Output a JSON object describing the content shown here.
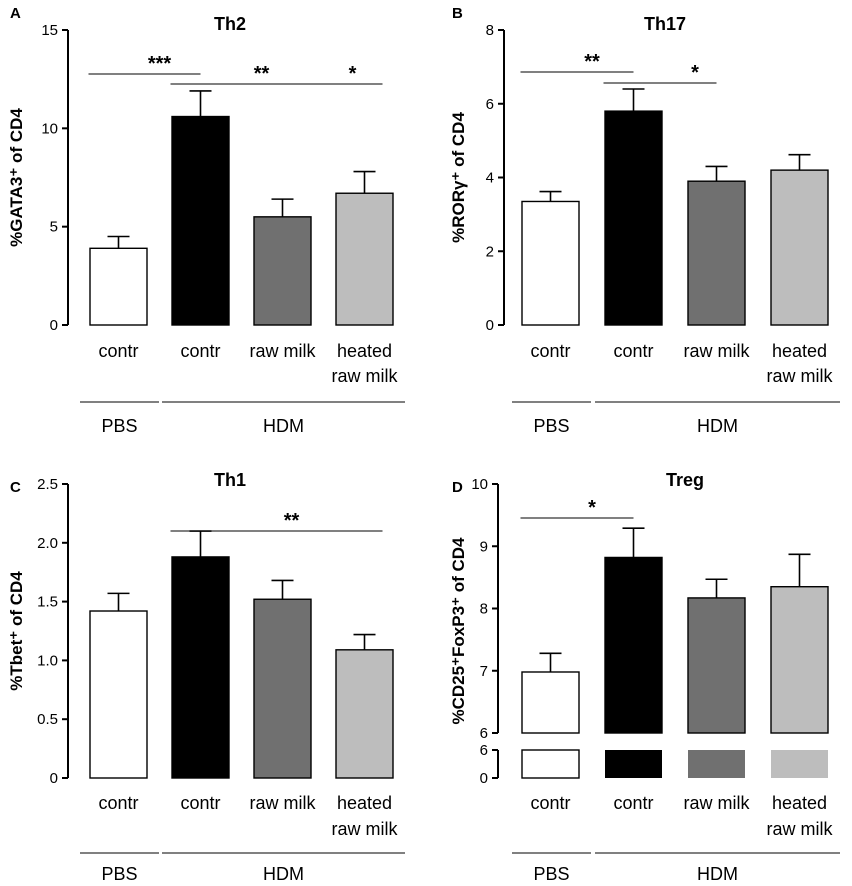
{
  "chart_data": [
    {
      "type": "bar",
      "panel": "A",
      "title": "Th2",
      "ylabel": "%GATA3⁺ of CD4",
      "ylim": [
        0,
        15
      ],
      "yticks": [
        "0",
        "5",
        "10",
        "15"
      ],
      "categories": [
        "contr",
        "contr",
        "raw milk",
        "heated raw milk"
      ],
      "category_lines": [
        [
          "contr"
        ],
        [
          "contr"
        ],
        [
          "raw milk"
        ],
        [
          "heated",
          "raw milk"
        ]
      ],
      "values": [
        3.9,
        10.6,
        5.5,
        6.7
      ],
      "errors": [
        0.6,
        1.3,
        0.9,
        1.1
      ],
      "colors": [
        "#ffffff",
        "#000000",
        "#707070",
        "#bdbdbd"
      ],
      "groups": [
        {
          "label": "PBS",
          "from": 0,
          "to": 0
        },
        {
          "label": "HDM",
          "from": 1,
          "to": 3
        }
      ],
      "significance": [
        {
          "from": 0,
          "to": 1,
          "label": "***"
        },
        {
          "from": 1,
          "to": 2,
          "label": "**"
        },
        {
          "from": 2,
          "to": 3,
          "label": "*"
        }
      ]
    },
    {
      "type": "bar",
      "panel": "B",
      "title": "Th17",
      "ylabel": "%RORγ⁺ of CD4",
      "ylim": [
        0,
        8
      ],
      "yticks": [
        "0",
        "2",
        "4",
        "6",
        "8"
      ],
      "categories": [
        "contr",
        "contr",
        "raw milk",
        "heated raw milk"
      ],
      "category_lines": [
        [
          "contr"
        ],
        [
          "contr"
        ],
        [
          "raw milk"
        ],
        [
          "heated",
          "raw milk"
        ]
      ],
      "values": [
        3.35,
        5.8,
        3.9,
        4.2
      ],
      "errors": [
        0.27,
        0.6,
        0.4,
        0.42
      ],
      "colors": [
        "#ffffff",
        "#000000",
        "#707070",
        "#bdbdbd"
      ],
      "groups": [
        {
          "label": "PBS",
          "from": 0,
          "to": 0
        },
        {
          "label": "HDM",
          "from": 1,
          "to": 3
        }
      ],
      "significance": [
        {
          "from": 0,
          "to": 1,
          "label": "**"
        },
        {
          "from": 1,
          "to": 2,
          "label": "*"
        }
      ]
    },
    {
      "type": "bar",
      "panel": "C",
      "title": "Th1",
      "ylabel": "%Tbet⁺ of CD4",
      "ylim": [
        0,
        2.5
      ],
      "yticks": [
        "0",
        "0.5",
        "1.0",
        "1.5",
        "2.0",
        "2.5"
      ],
      "categories": [
        "contr",
        "contr",
        "raw milk",
        "heated raw milk"
      ],
      "category_lines": [
        [
          "contr"
        ],
        [
          "contr"
        ],
        [
          "raw milk"
        ],
        [
          "heated",
          "raw milk"
        ]
      ],
      "values": [
        1.42,
        1.88,
        1.52,
        1.09
      ],
      "errors": [
        0.15,
        0.22,
        0.16,
        0.13
      ],
      "colors": [
        "#ffffff",
        "#000000",
        "#707070",
        "#bdbdbd"
      ],
      "groups": [
        {
          "label": "PBS",
          "from": 0,
          "to": 0
        },
        {
          "label": "HDM",
          "from": 1,
          "to": 3
        }
      ],
      "significance": [
        {
          "from": 1,
          "to": 3,
          "label": "**"
        }
      ]
    },
    {
      "type": "bar",
      "panel": "D",
      "title": "Treg",
      "ylabel": "%CD25⁺FoxP3⁺ of CD4",
      "axis_break": true,
      "ylim_upper": [
        6,
        10
      ],
      "yticks_upper": [
        "6",
        "7",
        "8",
        "9",
        "10"
      ],
      "ylim_lower": [
        0,
        6
      ],
      "yticks_lower": [
        "0",
        "6"
      ],
      "categories": [
        "contr",
        "contr",
        "raw milk",
        "heated raw milk"
      ],
      "category_lines": [
        [
          "contr"
        ],
        [
          "contr"
        ],
        [
          "raw milk"
        ],
        [
          "heated",
          "raw milk"
        ]
      ],
      "values": [
        6.98,
        8.82,
        8.17,
        8.35
      ],
      "errors": [
        0.3,
        0.47,
        0.3,
        0.52
      ],
      "colors": [
        "#ffffff",
        "#000000",
        "#707070",
        "#bdbdbd"
      ],
      "groups": [
        {
          "label": "PBS",
          "from": 0,
          "to": 0
        },
        {
          "label": "HDM",
          "from": 1,
          "to": 3
        }
      ],
      "significance": [
        {
          "from": 0,
          "to": 1,
          "label": "*"
        }
      ]
    }
  ]
}
